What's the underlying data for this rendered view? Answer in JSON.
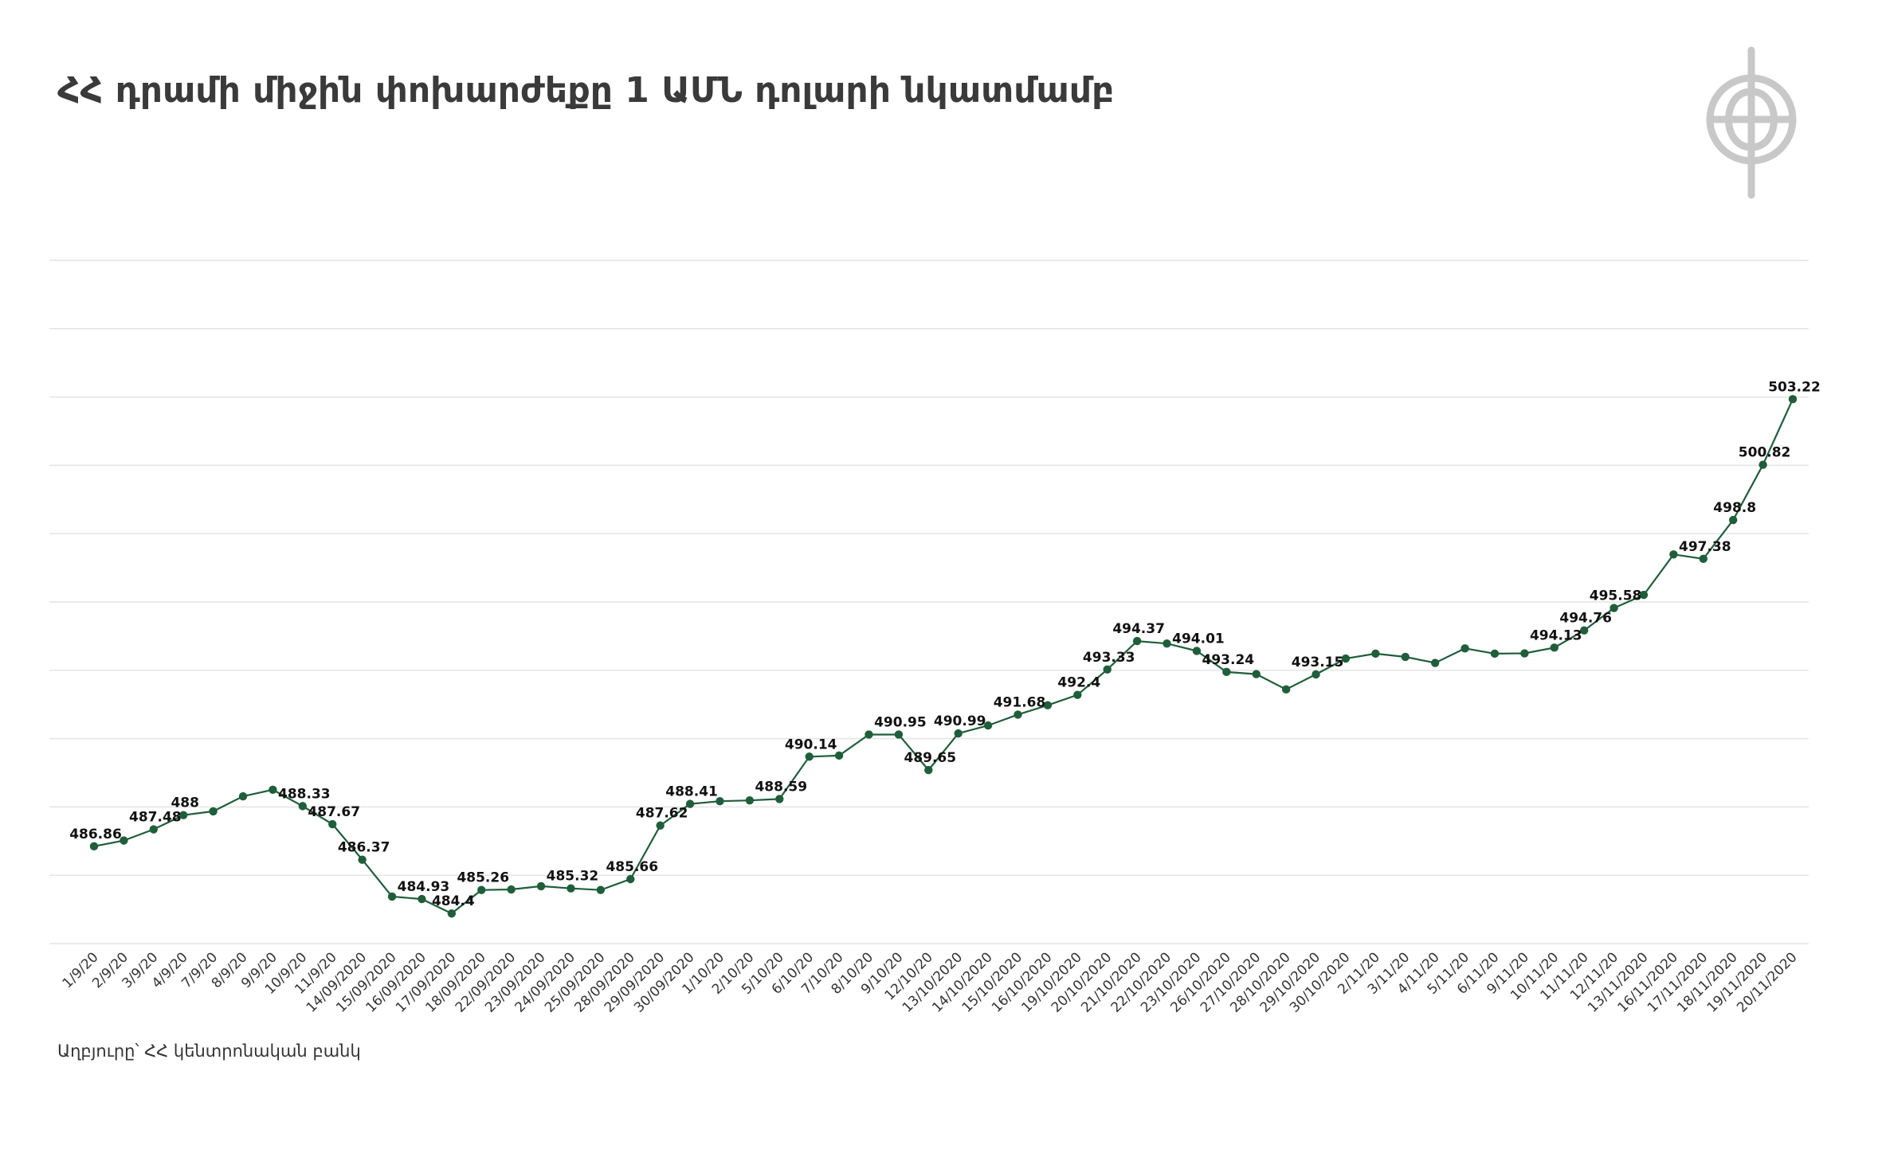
{
  "title": "ՀՀ դրամի միջին փոխարժեքը 1 ԱՄՆ դոլարի նկատմամբ",
  "source": "Աղբյուրը՝ ՀՀ կենտրոնական բանկ",
  "colors": {
    "line": "#1f5e3a",
    "grid": "#e4e4e4",
    "text": "#333333",
    "logo": "#c8c8c8"
  },
  "logo_icon": "circular-monogram-logo",
  "chart_data": {
    "type": "line",
    "ylim": [
      483.3,
      508.3
    ],
    "y_gridlines": [
      483.3,
      485.8,
      488.3,
      490.8,
      493.3,
      495.8,
      498.3,
      500.8,
      503.3,
      505.8,
      508.3
    ],
    "grid": true,
    "legend": "none",
    "categories": [
      "1/9/20",
      "2/9/20",
      "3/9/20",
      "4/9/20",
      "7/9/20",
      "8/9/20",
      "9/9/20",
      "10/9/20",
      "11/9/20",
      "14/09/2020",
      "15/09/2020",
      "16/09/2020",
      "17/09/2020",
      "18/09/2020",
      "22/09/2020",
      "23/09/2020",
      "24/09/2020",
      "25/09/2020",
      "28/09/2020",
      "29/09/2020",
      "30/09/2020",
      "1/10/20",
      "2/10/20",
      "5/10/20",
      "6/10/20",
      "7/10/20",
      "8/10/20",
      "9/10/20",
      "12/10/20",
      "13/10/2020",
      "14/10/2020",
      "15/10/2020",
      "16/10/2020",
      "19/10/2020",
      "20/10/2020",
      "21/10/2020",
      "22/10/2020",
      "23/10/2020",
      "26/10/2020",
      "27/10/2020",
      "28/10/2020",
      "29/10/2020",
      "30/10/2020",
      "2/11/20",
      "3/11/20",
      "4/11/20",
      "5/11/20",
      "6/11/20",
      "9/11/20",
      "10/11/20",
      "11/11/20",
      "12/11/20",
      "13/11/2020",
      "16/11/2020",
      "17/11/2020",
      "18/11/2020",
      "19/11/2020",
      "20/11/2020"
    ],
    "values": [
      486.86,
      487.07,
      487.48,
      488,
      488.14,
      488.69,
      488.93,
      488.33,
      487.67,
      486.37,
      485.02,
      484.93,
      484.4,
      485.26,
      485.28,
      485.4,
      485.32,
      485.26,
      485.66,
      487.62,
      488.41,
      488.51,
      488.54,
      488.59,
      490.14,
      490.18,
      490.95,
      490.95,
      489.65,
      490.99,
      491.28,
      491.68,
      492.02,
      492.4,
      493.33,
      494.37,
      494.28,
      494.01,
      493.24,
      493.16,
      492.6,
      493.15,
      493.73,
      493.91,
      493.79,
      493.57,
      494.1,
      493.91,
      493.92,
      494.13,
      494.76,
      495.58,
      496.06,
      497.54,
      497.38,
      498.8,
      500.82,
      503.22
    ],
    "data_labels": [
      {
        "index": 0,
        "text": "486.86"
      },
      {
        "index": 2,
        "text": "487.48"
      },
      {
        "index": 3,
        "text": "488"
      },
      {
        "index": 7,
        "text": "488.33"
      },
      {
        "index": 8,
        "text": "487.67"
      },
      {
        "index": 9,
        "text": "486.37"
      },
      {
        "index": 11,
        "text": "484.93"
      },
      {
        "index": 12,
        "text": "484.4"
      },
      {
        "index": 13,
        "text": "485.26"
      },
      {
        "index": 16,
        "text": "485.32"
      },
      {
        "index": 18,
        "text": "485.66"
      },
      {
        "index": 19,
        "text": "487.62"
      },
      {
        "index": 20,
        "text": "488.41"
      },
      {
        "index": 23,
        "text": "488.59"
      },
      {
        "index": 24,
        "text": "490.14"
      },
      {
        "index": 27,
        "text": "490.95"
      },
      {
        "index": 28,
        "text": "489.65"
      },
      {
        "index": 29,
        "text": "490.99"
      },
      {
        "index": 31,
        "text": "491.68"
      },
      {
        "index": 33,
        "text": "492.4"
      },
      {
        "index": 34,
        "text": "493.33"
      },
      {
        "index": 35,
        "text": "494.37"
      },
      {
        "index": 37,
        "text": "494.01"
      },
      {
        "index": 38,
        "text": "493.24"
      },
      {
        "index": 41,
        "text": "493.15"
      },
      {
        "index": 49,
        "text": "494.13"
      },
      {
        "index": 50,
        "text": "494.76"
      },
      {
        "index": 51,
        "text": "495.58"
      },
      {
        "index": 54,
        "text": "497.38"
      },
      {
        "index": 55,
        "text": "498.8"
      },
      {
        "index": 56,
        "text": "500.82"
      },
      {
        "index": 57,
        "text": "503.22"
      }
    ]
  }
}
